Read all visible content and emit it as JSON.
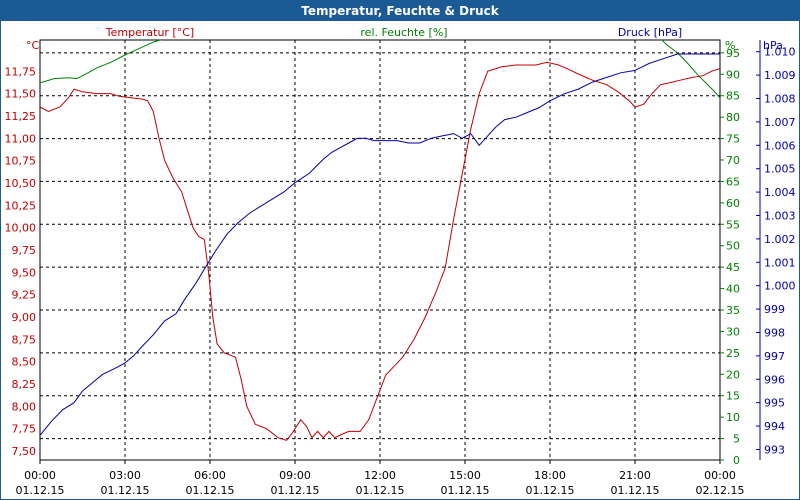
{
  "window": {
    "title": "Temperatur, Feuchte & Druck"
  },
  "colors": {
    "temperature": "#c00000",
    "humidity": "#008000",
    "pressure": "#0000a0",
    "titlebar": "#1c5a96",
    "grid": "#000000"
  },
  "chart_data": {
    "type": "line",
    "title": "Temperatur, Feuchte & Druck",
    "grid": true,
    "x_ticks": [
      {
        "time": "00:00",
        "date": "01.12.15"
      },
      {
        "time": "03:00",
        "date": "01.12.15"
      },
      {
        "time": "06:00",
        "date": "01.12.15"
      },
      {
        "time": "09:00",
        "date": "01.12.15"
      },
      {
        "time": "12:00",
        "date": "01.12.15"
      },
      {
        "time": "15:00",
        "date": "01.12.15"
      },
      {
        "time": "18:00",
        "date": "01.12.15"
      },
      {
        "time": "21:00",
        "date": "01.12.15"
      },
      {
        "time": "00:00",
        "date": "02.12.15"
      }
    ],
    "xlim": [
      0,
      24
    ],
    "axes": {
      "temperature": {
        "label": "Temperatur [°C]",
        "unit": "°C",
        "ylim": [
          7.4,
          12.1
        ],
        "ticks": [
          "7,50",
          "7,75",
          "8,00",
          "8,25",
          "8,50",
          "8,75",
          "9,00",
          "9,25",
          "9,50",
          "9,75",
          "10,00",
          "10,25",
          "10,50",
          "10,75",
          "11,00",
          "11,25",
          "11,50",
          "11,75"
        ]
      },
      "humidity": {
        "label": "rel. Feuchte [%]",
        "unit": "%",
        "ylim": [
          0,
          98
        ],
        "ticks": [
          "0",
          "5",
          "10",
          "15",
          "20",
          "25",
          "30",
          "35",
          "40",
          "45",
          "50",
          "55",
          "60",
          "65",
          "70",
          "75",
          "80",
          "85",
          "90",
          "95"
        ]
      },
      "pressure": {
        "label": "Druck [hPa]",
        "unit": "hPa",
        "ylim": [
          992.55,
          1010.5
        ],
        "ticks": [
          "993",
          "994",
          "995",
          "996",
          "997",
          "998",
          "999",
          "1.000",
          "1.001",
          "1.002",
          "1.003",
          "1.004",
          "1.005",
          "1.006",
          "1.007",
          "1.008",
          "1.009",
          "1.010"
        ]
      }
    },
    "series": [
      {
        "name": "Temperatur [°C]",
        "axis": "temperature",
        "points": [
          [
            0,
            11.35
          ],
          [
            0.3,
            11.3
          ],
          [
            0.7,
            11.35
          ],
          [
            1.0,
            11.45
          ],
          [
            1.2,
            11.55
          ],
          [
            1.5,
            11.52
          ],
          [
            2.0,
            11.5
          ],
          [
            2.5,
            11.5
          ],
          [
            2.8,
            11.47
          ],
          [
            3.3,
            11.45
          ],
          [
            3.6,
            11.44
          ],
          [
            3.8,
            11.42
          ],
          [
            4.0,
            11.3
          ],
          [
            4.2,
            11.0
          ],
          [
            4.4,
            10.75
          ],
          [
            4.7,
            10.55
          ],
          [
            5.0,
            10.4
          ],
          [
            5.2,
            10.2
          ],
          [
            5.4,
            10.0
          ],
          [
            5.6,
            9.9
          ],
          [
            5.8,
            9.87
          ],
          [
            5.95,
            9.5
          ],
          [
            6.1,
            9.0
          ],
          [
            6.25,
            8.7
          ],
          [
            6.5,
            8.6
          ],
          [
            6.9,
            8.55
          ],
          [
            7.1,
            8.3
          ],
          [
            7.3,
            8.0
          ],
          [
            7.6,
            7.8
          ],
          [
            8.0,
            7.75
          ],
          [
            8.4,
            7.65
          ],
          [
            8.7,
            7.62
          ],
          [
            8.9,
            7.7
          ],
          [
            9.2,
            7.85
          ],
          [
            9.4,
            7.78
          ],
          [
            9.6,
            7.65
          ],
          [
            9.8,
            7.72
          ],
          [
            10.0,
            7.65
          ],
          [
            10.2,
            7.72
          ],
          [
            10.4,
            7.65
          ],
          [
            10.6,
            7.68
          ],
          [
            10.9,
            7.72
          ],
          [
            11.3,
            7.72
          ],
          [
            11.6,
            7.85
          ],
          [
            11.9,
            8.1
          ],
          [
            12.2,
            8.35
          ],
          [
            12.5,
            8.45
          ],
          [
            12.8,
            8.55
          ],
          [
            13.2,
            8.75
          ],
          [
            13.6,
            9.0
          ],
          [
            14.0,
            9.3
          ],
          [
            14.3,
            9.55
          ],
          [
            14.6,
            10.1
          ],
          [
            14.9,
            10.6
          ],
          [
            15.2,
            11.1
          ],
          [
            15.5,
            11.5
          ],
          [
            15.8,
            11.75
          ],
          [
            16.3,
            11.8
          ],
          [
            16.8,
            11.82
          ],
          [
            17.5,
            11.82
          ],
          [
            17.9,
            11.85
          ],
          [
            18.3,
            11.82
          ],
          [
            18.6,
            11.78
          ],
          [
            19.0,
            11.72
          ],
          [
            19.5,
            11.65
          ],
          [
            20.0,
            11.6
          ],
          [
            20.4,
            11.52
          ],
          [
            20.8,
            11.42
          ],
          [
            21.0,
            11.35
          ],
          [
            21.3,
            11.38
          ],
          [
            21.6,
            11.5
          ],
          [
            21.9,
            11.6
          ],
          [
            22.2,
            11.62
          ],
          [
            22.6,
            11.65
          ],
          [
            23.0,
            11.68
          ],
          [
            23.4,
            11.7
          ],
          [
            23.7,
            11.75
          ],
          [
            24.0,
            11.78
          ]
        ]
      },
      {
        "name": "rel. Feuchte [%]",
        "axis": "humidity",
        "points": [
          [
            0,
            88
          ],
          [
            0.5,
            89
          ],
          [
            1.0,
            89.2
          ],
          [
            1.3,
            89
          ],
          [
            1.6,
            90
          ],
          [
            2.0,
            91.5
          ],
          [
            2.5,
            92.8
          ],
          [
            3.0,
            94.5
          ],
          [
            3.5,
            96
          ],
          [
            4.0,
            97.5
          ],
          [
            4.5,
            98.5
          ],
          [
            5.5,
            99.5
          ],
          [
            6.0,
            98.5
          ],
          [
            6.3,
            99.5
          ]
        ]
      },
      {
        "name": "rel. Feuchte [%]",
        "axis": "humidity",
        "points": [
          [
            21.8,
            99
          ],
          [
            22.1,
            97
          ],
          [
            22.5,
            95
          ],
          [
            22.8,
            93
          ],
          [
            23.2,
            90
          ],
          [
            23.5,
            88
          ],
          [
            23.8,
            86
          ],
          [
            24.0,
            84.5
          ]
        ]
      },
      {
        "name": "Druck [hPa]",
        "axis": "pressure",
        "points": [
          [
            0,
            993.6
          ],
          [
            0.4,
            994.2
          ],
          [
            0.8,
            994.7
          ],
          [
            1.2,
            995.0
          ],
          [
            1.5,
            995.5
          ],
          [
            1.8,
            995.8
          ],
          [
            2.2,
            996.2
          ],
          [
            2.7,
            996.5
          ],
          [
            3.0,
            996.7
          ],
          [
            3.3,
            997.0
          ],
          [
            3.6,
            997.4
          ],
          [
            4.0,
            997.9
          ],
          [
            4.4,
            998.5
          ],
          [
            4.8,
            998.8
          ],
          [
            5.1,
            999.4
          ],
          [
            5.5,
            1000.1
          ],
          [
            5.8,
            1000.7
          ],
          [
            6.2,
            1001.5
          ],
          [
            6.6,
            1002.2
          ],
          [
            7.0,
            1002.7
          ],
          [
            7.4,
            1003.1
          ],
          [
            7.8,
            1003.4
          ],
          [
            8.2,
            1003.7
          ],
          [
            8.6,
            1004.0
          ],
          [
            9.0,
            1004.4
          ],
          [
            9.5,
            1004.8
          ],
          [
            10.0,
            1005.4
          ],
          [
            10.3,
            1005.7
          ],
          [
            10.6,
            1005.9
          ],
          [
            10.9,
            1006.1
          ],
          [
            11.2,
            1006.3
          ],
          [
            11.5,
            1006.3
          ],
          [
            11.8,
            1006.2
          ],
          [
            12.2,
            1006.2
          ],
          [
            12.6,
            1006.2
          ],
          [
            13.0,
            1006.1
          ],
          [
            13.4,
            1006.1
          ],
          [
            13.8,
            1006.3
          ],
          [
            14.2,
            1006.4
          ],
          [
            14.6,
            1006.5
          ],
          [
            14.9,
            1006.3
          ],
          [
            15.2,
            1006.5
          ],
          [
            15.5,
            1006.0
          ],
          [
            15.8,
            1006.4
          ],
          [
            16.1,
            1006.8
          ],
          [
            16.4,
            1007.1
          ],
          [
            16.8,
            1007.2
          ],
          [
            17.2,
            1007.4
          ],
          [
            17.6,
            1007.6
          ],
          [
            18.0,
            1007.9
          ],
          [
            18.5,
            1008.2
          ],
          [
            19.0,
            1008.4
          ],
          [
            19.5,
            1008.7
          ],
          [
            20.0,
            1008.9
          ],
          [
            20.5,
            1009.1
          ],
          [
            21.0,
            1009.2
          ],
          [
            21.5,
            1009.5
          ],
          [
            22.0,
            1009.7
          ],
          [
            22.5,
            1009.9
          ],
          [
            23.0,
            1009.9
          ],
          [
            23.5,
            1009.9
          ],
          [
            24.0,
            1009.9
          ]
        ]
      }
    ]
  }
}
